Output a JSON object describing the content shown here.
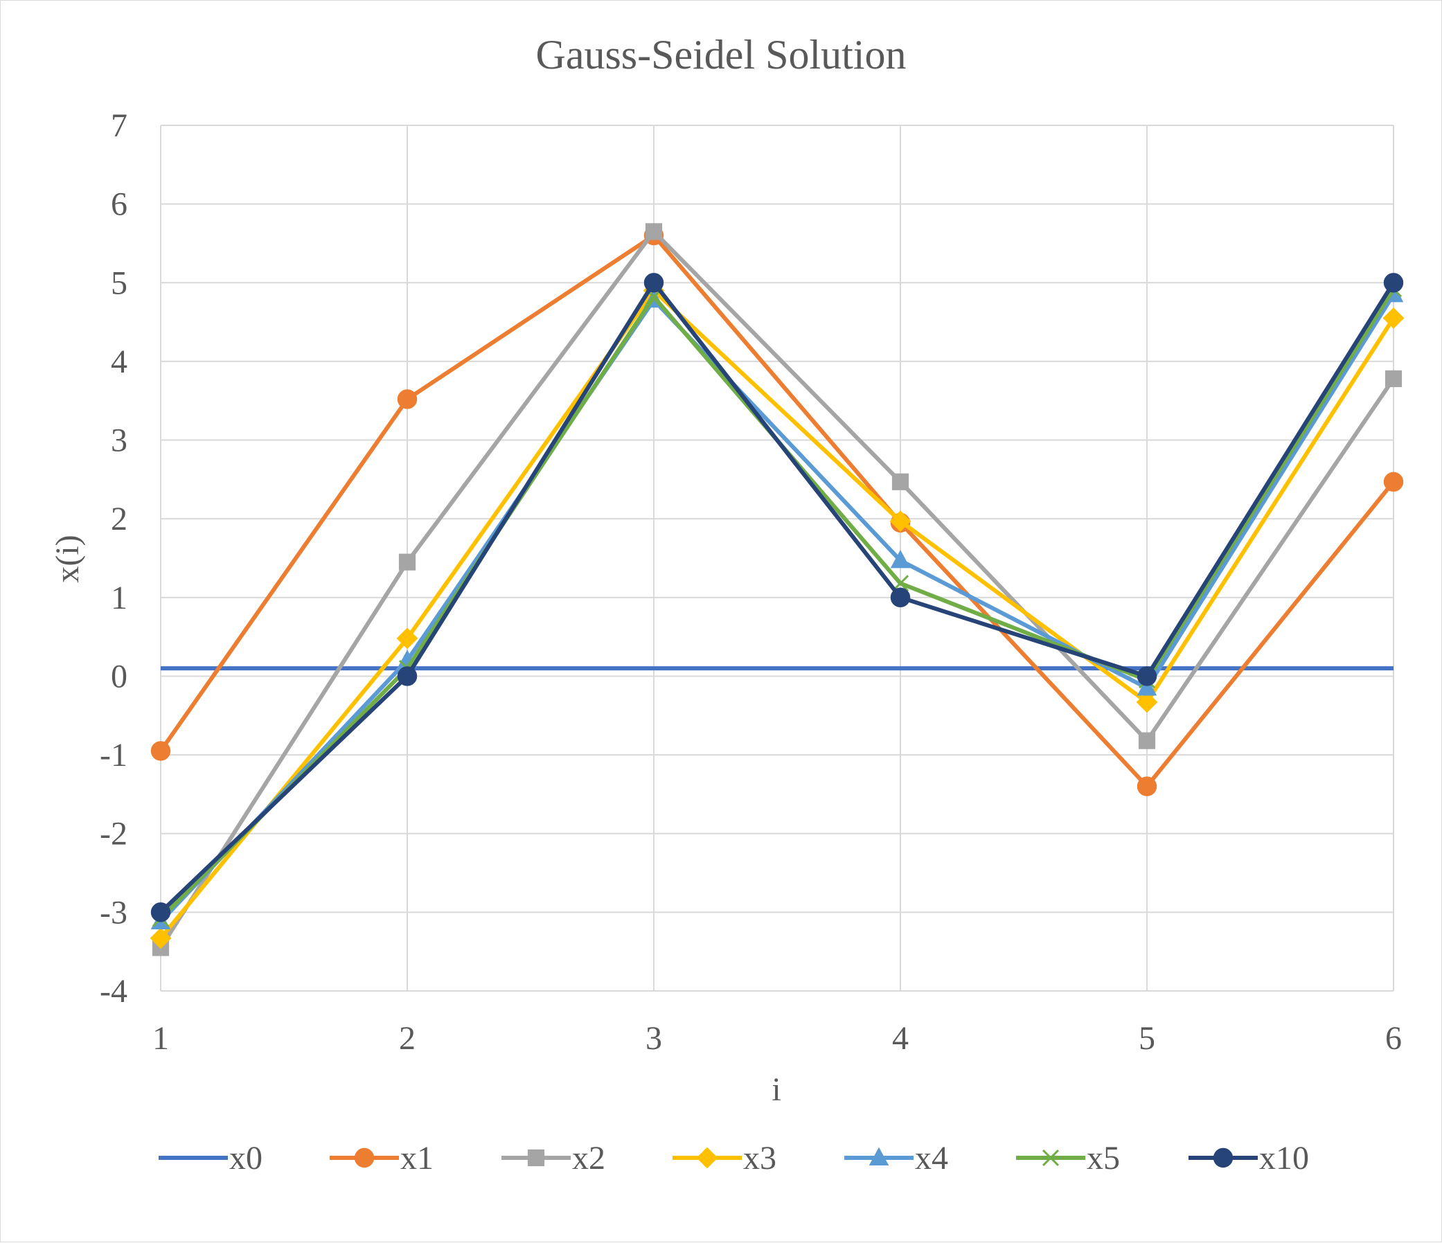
{
  "chart_data": {
    "type": "line",
    "title": "Gauss-Seidel Solution",
    "xlabel": "i",
    "ylabel": "x(i)",
    "x": [
      1,
      2,
      3,
      4,
      5,
      6
    ],
    "x_tick_labels": [
      "1",
      "2",
      "3",
      "4",
      "5",
      "6"
    ],
    "y_tick_labels": [
      "-4",
      "-3",
      "-2",
      "-1",
      "0",
      "1",
      "2",
      "3",
      "4",
      "5",
      "6",
      "7"
    ],
    "ylim": [
      -4,
      7
    ],
    "grid": true,
    "legend_position": "bottom",
    "series": [
      {
        "name": "x0",
        "color": "#4472C4",
        "marker": "none",
        "values": [
          0.1,
          0.1,
          0.1,
          0.1,
          0.1,
          0.1
        ]
      },
      {
        "name": "x1",
        "color": "#ED7D31",
        "marker": "circle",
        "values": [
          -0.95,
          3.52,
          5.6,
          1.95,
          -1.4,
          2.47
        ]
      },
      {
        "name": "x2",
        "color": "#A5A5A5",
        "marker": "square",
        "values": [
          -3.45,
          1.45,
          5.65,
          2.47,
          -0.82,
          3.78
        ]
      },
      {
        "name": "x3",
        "color": "#FFC000",
        "marker": "diamond",
        "values": [
          -3.33,
          0.48,
          4.9,
          1.97,
          -0.33,
          4.55
        ]
      },
      {
        "name": "x4",
        "color": "#5B9BD5",
        "marker": "triangle",
        "values": [
          -3.12,
          0.2,
          4.78,
          1.47,
          -0.15,
          4.85
        ]
      },
      {
        "name": "x5",
        "color": "#70AD47",
        "marker": "x",
        "values": [
          -3.08,
          0.1,
          4.82,
          1.18,
          -0.05,
          4.92
        ]
      },
      {
        "name": "x10",
        "color": "#264478",
        "marker": "circle",
        "values": [
          -3.0,
          0.0,
          5.0,
          1.0,
          0.0,
          5.0
        ]
      }
    ]
  }
}
